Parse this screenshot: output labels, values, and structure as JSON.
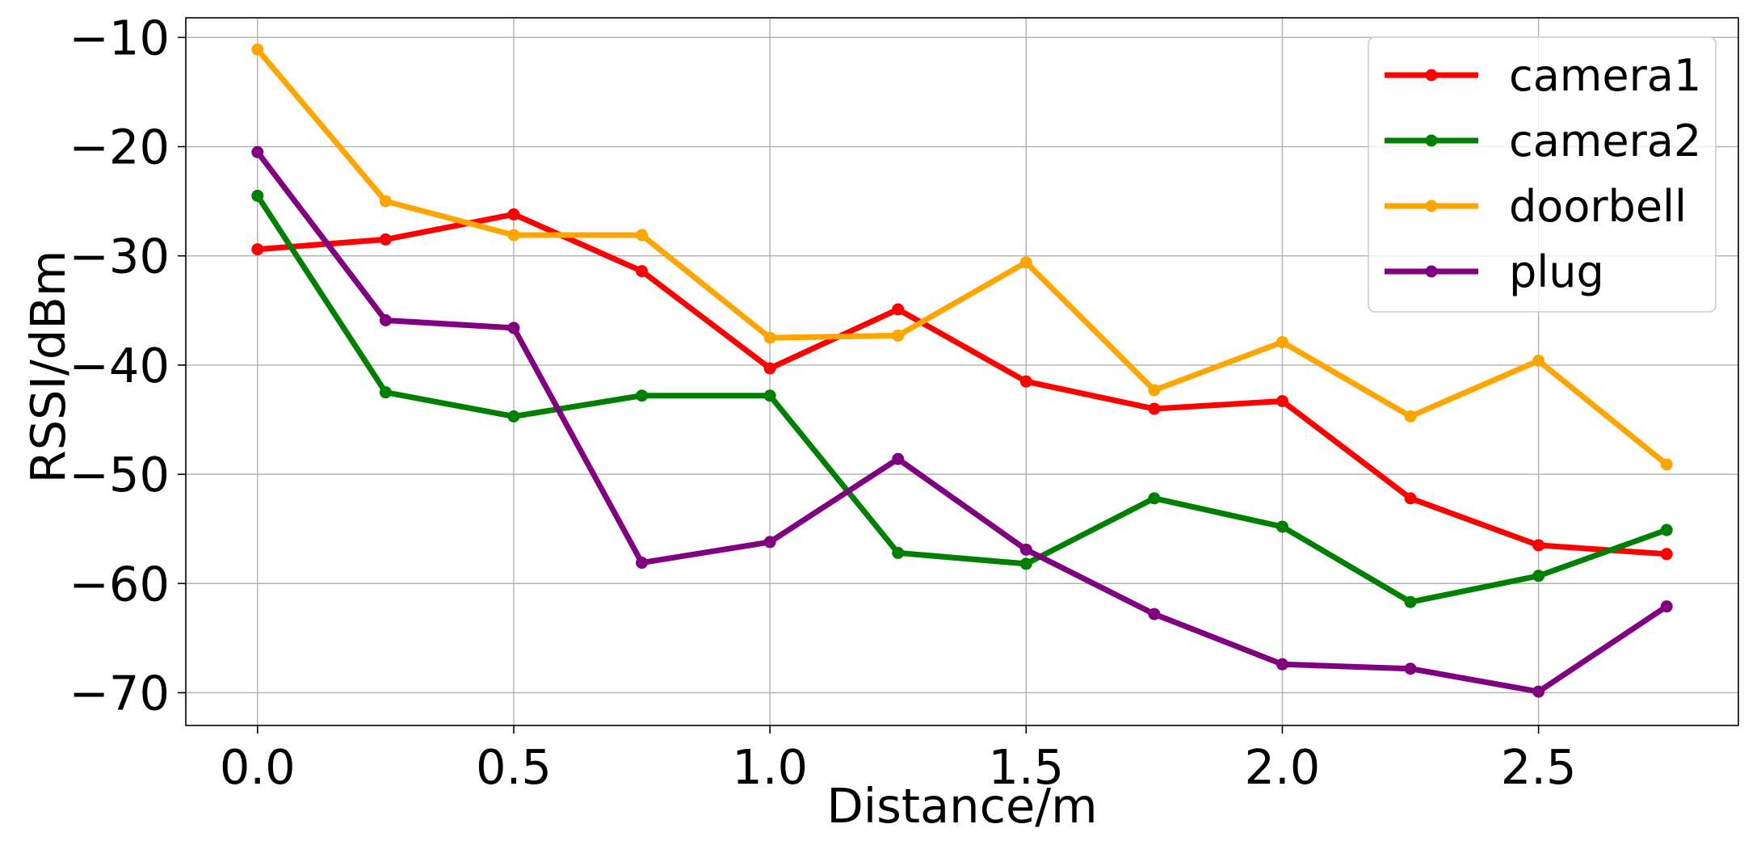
{
  "chart_data": {
    "type": "line",
    "title": "",
    "xlabel": "Distance/m",
    "ylabel": "RSSI/dBm",
    "x": [
      0.0,
      0.25,
      0.5,
      0.75,
      1.0,
      1.25,
      1.5,
      1.75,
      2.0,
      2.25,
      2.5,
      2.75
    ],
    "xlim": [
      -0.14,
      2.89
    ],
    "ylim": [
      -73.0,
      -8.2
    ],
    "xticks": [
      0.0,
      0.5,
      1.0,
      1.5,
      2.0,
      2.5
    ],
    "xtick_labels": [
      "0.0",
      "0.5",
      "1.0",
      "1.5",
      "2.0",
      "2.5"
    ],
    "yticks": [
      -10,
      -20,
      -30,
      -40,
      -50,
      -60,
      -70
    ],
    "ytick_labels": [
      "−10",
      "−20",
      "−30",
      "−40",
      "−50",
      "−60",
      "−70"
    ],
    "grid": true,
    "legend_position": "top-right",
    "series": [
      {
        "name": "camera1",
        "color": "#ff0000",
        "values": [
          -29.4,
          -28.5,
          -26.2,
          -31.4,
          -40.3,
          -34.9,
          -41.5,
          -44.0,
          -43.3,
          -52.2,
          -56.5,
          -57.3
        ]
      },
      {
        "name": "camera2",
        "color": "#008000",
        "values": [
          -24.5,
          -42.5,
          -44.7,
          -42.8,
          -42.8,
          -57.2,
          -58.2,
          -52.2,
          -54.8,
          -61.7,
          -59.3,
          -55.1
        ]
      },
      {
        "name": "doorbell",
        "color": "#ffa500",
        "values": [
          -11.1,
          -25.0,
          -28.1,
          -28.1,
          -37.5,
          -37.3,
          -30.6,
          -42.3,
          -37.9,
          -44.7,
          -39.6,
          -49.1
        ]
      },
      {
        "name": "plug",
        "color": "#800080",
        "values": [
          -20.5,
          -35.9,
          -36.6,
          -58.1,
          -56.2,
          -48.6,
          -56.9,
          -62.8,
          -67.4,
          -67.8,
          -69.9,
          -62.1
        ]
      }
    ]
  }
}
